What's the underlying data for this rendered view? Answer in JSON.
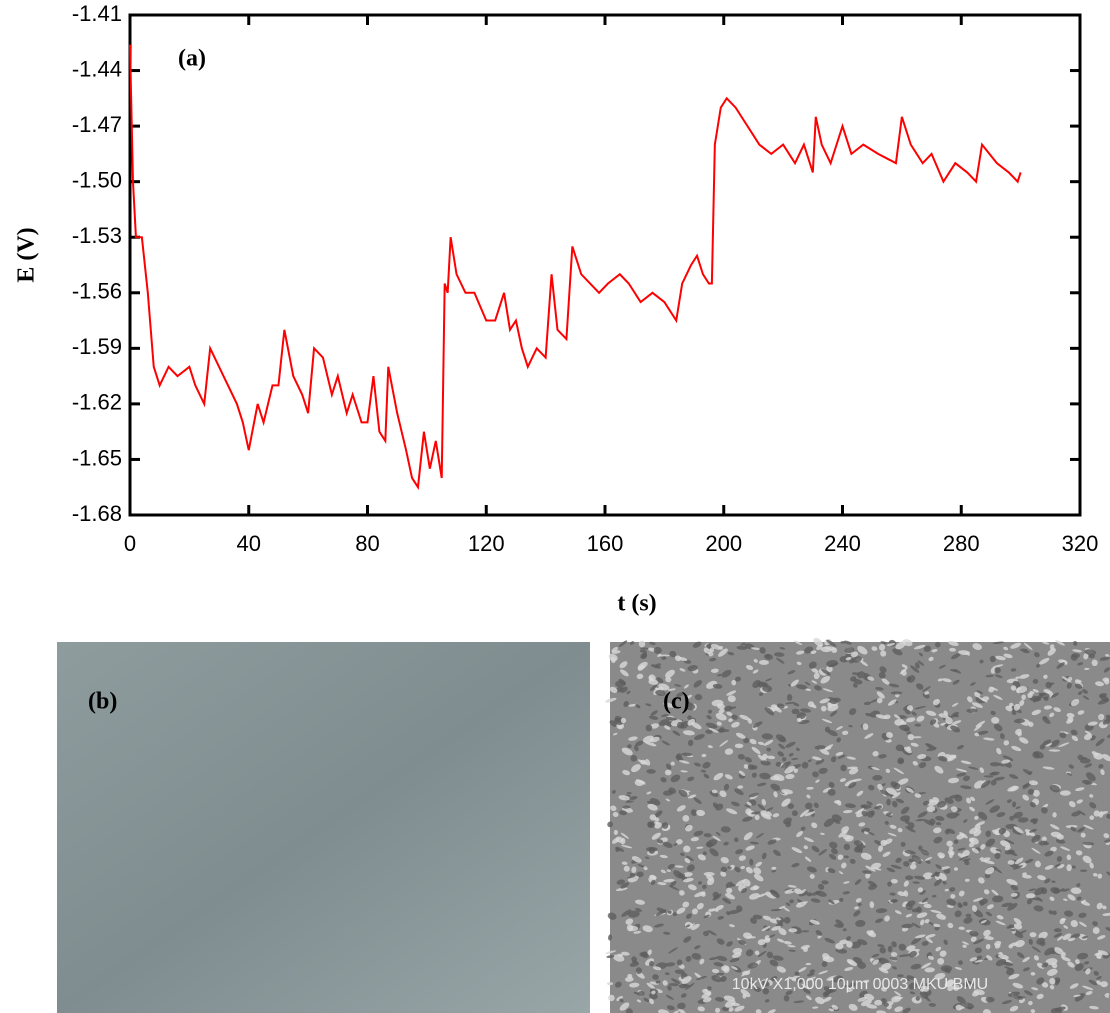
{
  "chart_data": {
    "type": "line",
    "xlabel": "t (s)",
    "ylabel": "E (V)",
    "annotation": "(a)",
    "color": "#ff0000",
    "x": [
      0,
      1,
      2,
      4,
      6,
      8,
      10,
      13,
      16,
      20,
      22,
      25,
      27,
      30,
      33,
      36,
      38,
      40,
      43,
      45,
      48,
      50,
      52,
      55,
      58,
      60,
      62,
      65,
      68,
      70,
      73,
      75,
      78,
      80,
      82,
      84,
      86,
      87,
      90,
      93,
      95,
      97,
      99,
      101,
      103,
      105,
      106,
      107,
      108,
      110,
      113,
      116,
      120,
      123,
      126,
      128,
      130,
      132,
      134,
      137,
      140,
      142,
      144,
      147,
      149,
      152,
      155,
      158,
      161,
      165,
      168,
      172,
      176,
      180,
      184,
      186,
      189,
      191,
      193,
      195,
      196,
      197,
      199,
      201,
      204,
      208,
      212,
      216,
      220,
      224,
      227,
      230,
      231,
      233,
      236,
      238,
      240,
      243,
      247,
      252,
      258,
      260,
      263,
      267,
      270,
      274,
      278,
      282,
      285,
      287,
      292,
      296,
      299,
      300
    ],
    "values": [
      -1.426,
      -1.5,
      -1.53,
      -1.53,
      -1.56,
      -1.6,
      -1.61,
      -1.6,
      -1.605,
      -1.6,
      -1.61,
      -1.62,
      -1.59,
      -1.6,
      -1.61,
      -1.62,
      -1.63,
      -1.645,
      -1.62,
      -1.63,
      -1.61,
      -1.61,
      -1.58,
      -1.605,
      -1.615,
      -1.625,
      -1.59,
      -1.595,
      -1.615,
      -1.605,
      -1.625,
      -1.615,
      -1.63,
      -1.63,
      -1.605,
      -1.635,
      -1.64,
      -1.6,
      -1.625,
      -1.645,
      -1.66,
      -1.665,
      -1.635,
      -1.655,
      -1.64,
      -1.66,
      -1.555,
      -1.56,
      -1.53,
      -1.55,
      -1.56,
      -1.56,
      -1.575,
      -1.575,
      -1.56,
      -1.58,
      -1.575,
      -1.59,
      -1.6,
      -1.59,
      -1.595,
      -1.55,
      -1.58,
      -1.585,
      -1.535,
      -1.55,
      -1.555,
      -1.56,
      -1.555,
      -1.55,
      -1.555,
      -1.565,
      -1.56,
      -1.565,
      -1.575,
      -1.555,
      -1.545,
      -1.54,
      -1.55,
      -1.555,
      -1.555,
      -1.48,
      -1.46,
      -1.455,
      -1.46,
      -1.47,
      -1.48,
      -1.485,
      -1.48,
      -1.49,
      -1.48,
      -1.495,
      -1.465,
      -1.48,
      -1.49,
      -1.48,
      -1.47,
      -1.485,
      -1.48,
      -1.485,
      -1.49,
      -1.465,
      -1.48,
      -1.49,
      -1.485,
      -1.5,
      -1.49,
      -1.495,
      -1.5,
      -1.48,
      -1.49,
      -1.495,
      -1.5,
      -1.495
    ],
    "xlim": [
      0,
      320
    ],
    "xticks": [
      0,
      40,
      80,
      120,
      160,
      200,
      240,
      280,
      320
    ],
    "ylim": [
      -1.68,
      -1.41
    ],
    "yticks": [
      -1.41,
      -1.44,
      -1.47,
      {
        "value": -1.5,
        "label": "-1.50"
      },
      -1.53,
      -1.56,
      -1.59,
      -1.62,
      -1.65,
      -1.68
    ]
  },
  "panels": [
    {
      "label": "(b)"
    },
    {
      "label": "(c)",
      "caption": "10kV   X1,000   10µm   0003 MKU BMU"
    }
  ]
}
